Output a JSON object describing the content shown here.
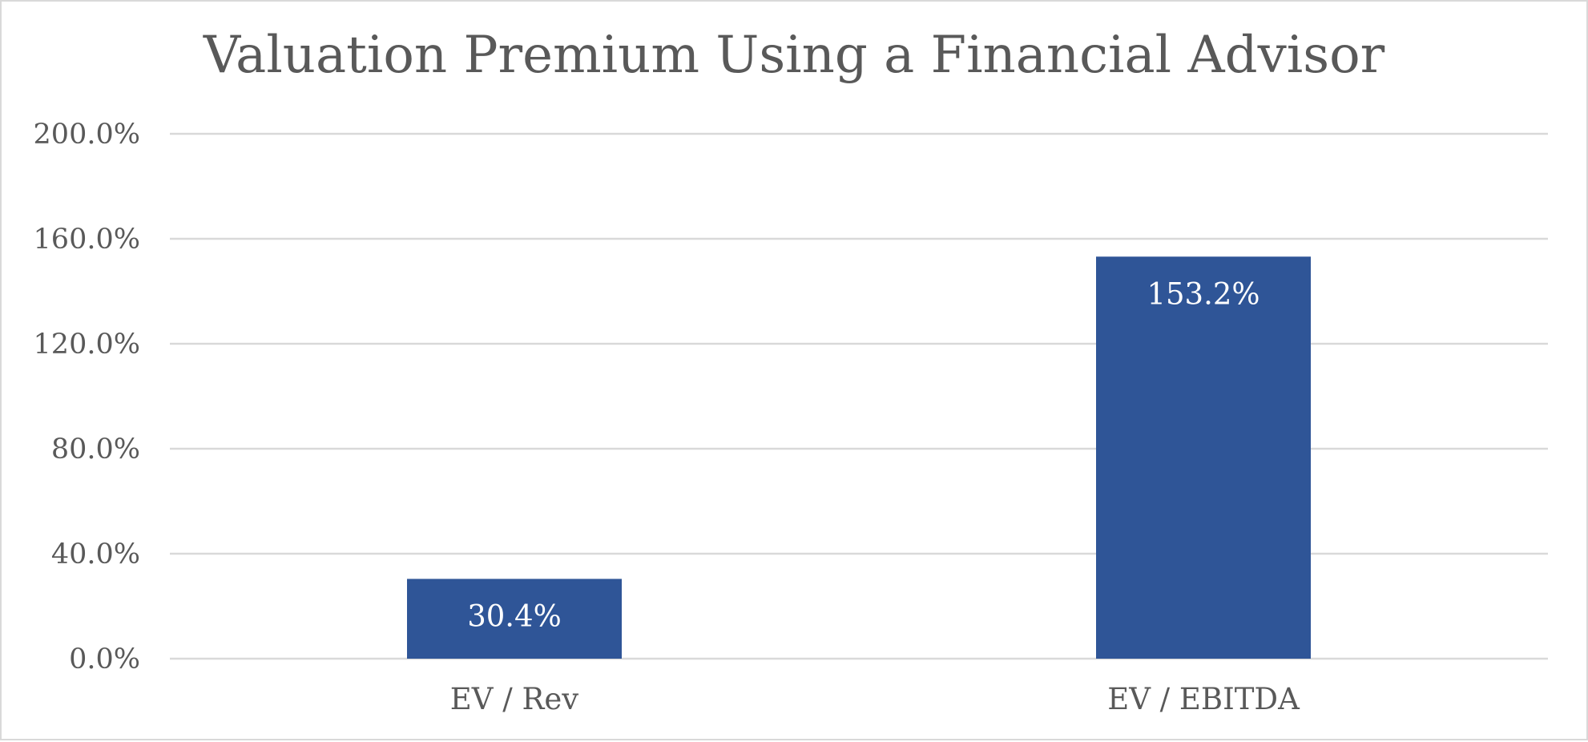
{
  "chart_data": {
    "type": "bar",
    "title": "Valuation Premium Using a Financial Advisor",
    "categories": [
      "EV / Rev",
      "EV / EBITDA"
    ],
    "values": [
      30.4,
      153.2
    ],
    "data_labels": [
      "30.4%",
      "153.2%"
    ],
    "ylim": [
      0,
      200
    ],
    "yticks": [
      0,
      40,
      80,
      120,
      160,
      200
    ],
    "ytick_labels": [
      "0.0%",
      "40.0%",
      "80.0%",
      "120.0%",
      "160.0%",
      "200.0%"
    ],
    "xlabel": "",
    "ylabel": "",
    "grid": true,
    "legend": "none",
    "colors": {
      "bar": "#2f5597",
      "grid": "#d9d9d9",
      "text": "#595959",
      "data_label": "#ffffff"
    }
  }
}
